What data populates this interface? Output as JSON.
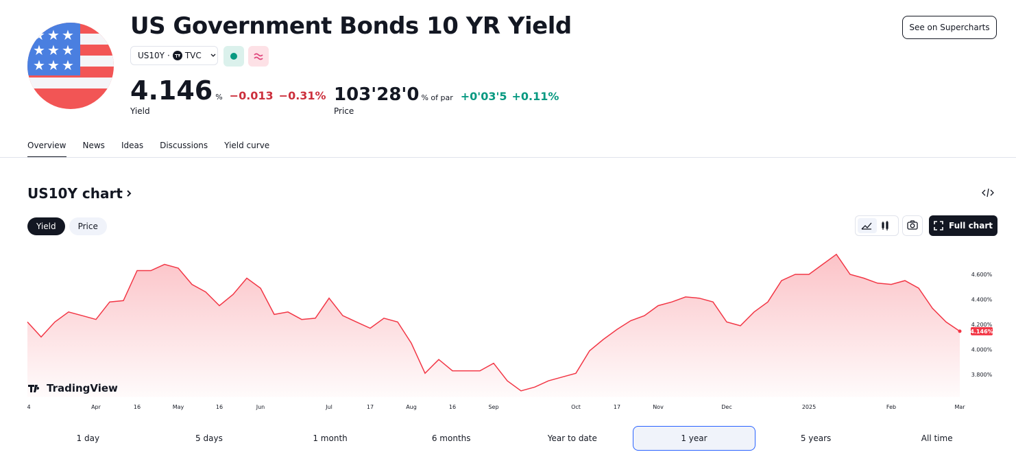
{
  "header": {
    "title": "US Government Bonds 10 YR Yield",
    "symbol": "US10Y",
    "exchange": "TVC",
    "supercharts_button": "See on Supercharts"
  },
  "quotes": {
    "yield": {
      "value": "4.146",
      "unit": "%",
      "change": "−0.013",
      "change_percent": "−0.31%",
      "label": "Yield"
    },
    "price": {
      "value": "103'28'0",
      "unit": "% of par",
      "change": "+0'03'5",
      "change_percent": "+0.11%",
      "label": "Price"
    }
  },
  "tabs": {
    "items": [
      "Overview",
      "News",
      "Ideas",
      "Discussions",
      "Yield curve"
    ],
    "active": 0
  },
  "chart_section": {
    "title": "US10Y chart",
    "toggles": [
      "Yield",
      "Price"
    ],
    "active_toggle": 0,
    "full_chart_button": "Full chart",
    "watermark": "TradingView"
  },
  "chart_data": {
    "type": "line",
    "color": "#f23645",
    "categories": [
      "4",
      null,
      null,
      null,
      null,
      "Apr",
      null,
      null,
      "16",
      null,
      null,
      "May",
      null,
      null,
      "16",
      null,
      null,
      "Jun",
      null,
      null,
      null,
      null,
      "Jul",
      null,
      null,
      "17",
      null,
      null,
      "Aug",
      null,
      null,
      "16",
      null,
      null,
      "Sep",
      null,
      null,
      null,
      null,
      null,
      "Oct",
      null,
      null,
      "17",
      null,
      null,
      "Nov",
      null,
      null,
      null,
      null,
      "Dec",
      null,
      null,
      null,
      null,
      null,
      "2025",
      null,
      null,
      null,
      null,
      null,
      "Feb",
      null,
      null,
      null,
      null,
      "Mar"
    ],
    "values": [
      4.22,
      4.1,
      4.22,
      4.3,
      4.27,
      4.24,
      4.38,
      4.39,
      4.63,
      4.63,
      4.68,
      4.65,
      4.52,
      4.46,
      4.35,
      4.44,
      4.57,
      4.49,
      4.28,
      4.3,
      4.24,
      4.25,
      4.41,
      4.27,
      4.22,
      4.17,
      4.25,
      4.22,
      4.05,
      3.81,
      3.92,
      3.83,
      3.83,
      3.83,
      3.89,
      3.75,
      3.67,
      3.7,
      3.75,
      3.78,
      3.81,
      3.99,
      4.08,
      4.16,
      4.23,
      4.27,
      4.35,
      4.38,
      4.42,
      4.41,
      4.38,
      4.22,
      4.19,
      4.3,
      4.38,
      4.55,
      4.6,
      4.6,
      4.68,
      4.76,
      4.6,
      4.57,
      4.53,
      4.52,
      4.55,
      4.49,
      4.33,
      4.22,
      4.146
    ],
    "last_value_label": "4.146%",
    "ylim": [
      3.62,
      4.8
    ],
    "yticks": [
      {
        "value": 3.8,
        "label": "3.800%"
      },
      {
        "value": 4.0,
        "label": "4.000%"
      },
      {
        "value": 4.2,
        "label": "4.200%"
      },
      {
        "value": 4.4,
        "label": "4.400%"
      },
      {
        "value": 4.6,
        "label": "4.600%"
      }
    ],
    "grid": false
  },
  "ranges": {
    "items": [
      "1 day",
      "5 days",
      "1 month",
      "6 months",
      "Year to date",
      "1 year",
      "5 years",
      "All time"
    ],
    "active": 5
  }
}
